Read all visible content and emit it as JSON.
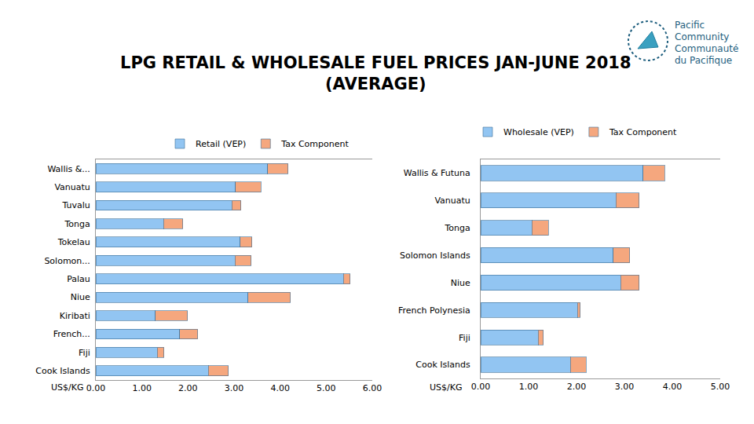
{
  "chart_data": [
    {
      "type": "bar",
      "orientation": "horizontal",
      "stacked": true,
      "grid": false,
      "legend": "top",
      "title": "LPG RETAIL & WHOLESALE FUEL PRICES JAN-JUNE 2018",
      "subtitle": "(AVERAGE)",
      "annotations": [
        "Pacific",
        "Community",
        "Communauté",
        "du Pacifique"
      ],
      "xlabel": "US$/KG",
      "categories": [
        "Wallis &...",
        "Vanuatu",
        "Tuvalu",
        "Tonga",
        "Tokelau",
        "Solomon...",
        "Palau",
        "Niue",
        "Kiribati",
        "French...",
        "Fiji",
        "Cook Islands"
      ],
      "series": [
        {
          "name": "Retail (VEP)",
          "color": "#92c5f2",
          "values": [
            3.73,
            3.03,
            2.95,
            1.47,
            3.13,
            3.02,
            5.37,
            3.3,
            1.29,
            1.82,
            1.33,
            2.44
          ]
        },
        {
          "name": "Tax Component",
          "color": "#f5a77e",
          "values": [
            0.44,
            0.55,
            0.2,
            0.42,
            0.26,
            0.35,
            0.15,
            0.92,
            0.7,
            0.39,
            0.15,
            0.44
          ]
        }
      ],
      "xlim": [
        0,
        6
      ],
      "xticks": [
        {
          "value": 0,
          "label": "0.00"
        },
        {
          "value": 1,
          "label": "1.00"
        },
        {
          "value": 2,
          "label": "2.00"
        },
        {
          "value": 3,
          "label": "3.00"
        },
        {
          "value": 4,
          "label": "4.00"
        },
        {
          "value": 5,
          "label": "5.00"
        },
        {
          "value": 6,
          "label": "6.00"
        }
      ]
    },
    {
      "type": "bar",
      "orientation": "horizontal",
      "stacked": true,
      "grid": false,
      "legend": "top",
      "xlabel": "US$/KG",
      "categories": [
        "Wallis & Futuna",
        "Vanuatu",
        "Tonga",
        "Solomon Islands",
        "Niue",
        "French Polynesia",
        "Fiji",
        "Cook Islands"
      ],
      "series": [
        {
          "name": "Wholesale (VEP)",
          "color": "#92c5f2",
          "values": [
            3.39,
            2.82,
            1.07,
            2.77,
            2.92,
            2.02,
            1.2,
            1.87
          ]
        },
        {
          "name": "Tax Component",
          "color": "#f5a77e",
          "values": [
            0.45,
            0.49,
            0.34,
            0.34,
            0.39,
            0.06,
            0.11,
            0.33
          ]
        }
      ],
      "xlim": [
        0,
        5
      ],
      "xticks": [
        {
          "value": 0,
          "label": "0.00"
        },
        {
          "value": 1,
          "label": "1.00"
        },
        {
          "value": 2,
          "label": "2.00"
        },
        {
          "value": 3,
          "label": "3.00"
        },
        {
          "value": 4,
          "label": "4.00"
        },
        {
          "value": 5,
          "label": "5.00"
        }
      ]
    }
  ]
}
